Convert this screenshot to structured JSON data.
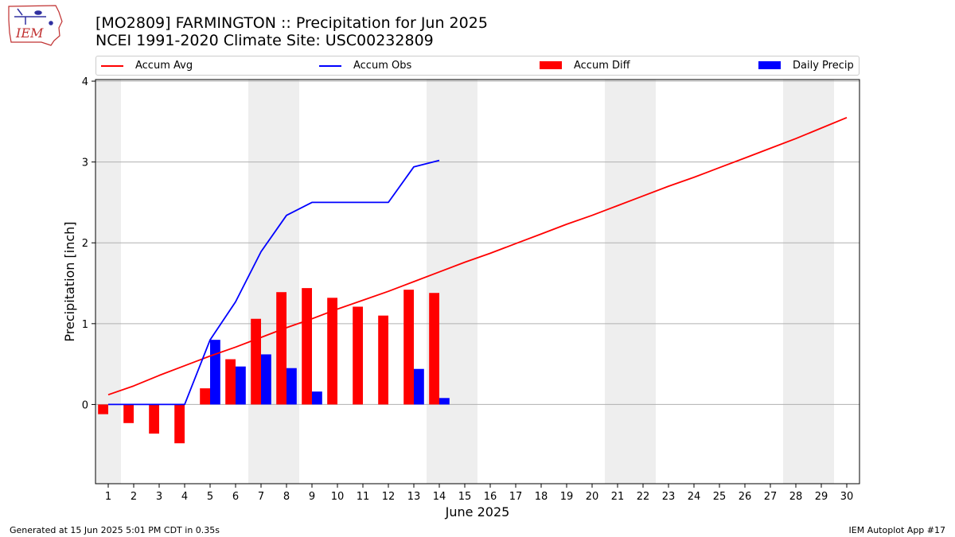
{
  "header": {
    "title_line1": "[MO2809] FARMINGTON :: Precipitation for Jun 2025",
    "title_line2": "NCEI 1991-2020 Climate Site: USC00232809",
    "logo_text": "IEM"
  },
  "footer": {
    "generated": "Generated at 15 Jun 2025 5:01 PM CDT in 0.35s",
    "app": "IEM Autoplot App #17"
  },
  "colors": {
    "accum_avg": "#ff0000",
    "accum_obs": "#0000ff",
    "accum_diff": "#ff0000",
    "daily_precip": "#0000ff",
    "weekend_band": "#eeeeee",
    "grid": "#b0b0b0"
  },
  "chart_data": {
    "type": "bar",
    "xlabel": "June 2025",
    "ylabel": "Precipitation [inch]",
    "x": [
      1,
      2,
      3,
      4,
      5,
      6,
      7,
      8,
      9,
      10,
      11,
      12,
      13,
      14,
      15,
      16,
      17,
      18,
      19,
      20,
      21,
      22,
      23,
      24,
      25,
      26,
      27,
      28,
      29,
      30
    ],
    "xticks": [
      "1",
      "2",
      "3",
      "4",
      "5",
      "6",
      "7",
      "8",
      "9",
      "10",
      "11",
      "12",
      "13",
      "14",
      "15",
      "16",
      "17",
      "18",
      "19",
      "20",
      "21",
      "22",
      "23",
      "24",
      "25",
      "26",
      "27",
      "28",
      "29",
      "30"
    ],
    "xlim": [
      0.5,
      30.5
    ],
    "ylim": [
      -0.98,
      4.02
    ],
    "yticks": [
      0,
      1,
      2,
      3,
      4
    ],
    "ytick_labels": [
      "0",
      "1",
      "2",
      "3",
      "4"
    ],
    "grid": "horizontal",
    "legend": "top, above plot",
    "weekend_days": [
      1,
      7,
      8,
      14,
      15,
      21,
      22,
      28,
      29
    ],
    "series": [
      {
        "name": "Accum Avg",
        "kind": "line",
        "x": [
          1,
          2,
          3,
          4,
          5,
          6,
          7,
          8,
          9,
          10,
          11,
          12,
          13,
          14,
          15,
          16,
          17,
          18,
          19,
          20,
          21,
          22,
          23,
          24,
          25,
          26,
          27,
          28,
          29,
          30
        ],
        "values": [
          0.12,
          0.23,
          0.36,
          0.48,
          0.6,
          0.71,
          0.83,
          0.95,
          1.06,
          1.18,
          1.29,
          1.4,
          1.52,
          1.64,
          1.76,
          1.87,
          1.99,
          2.11,
          2.23,
          2.34,
          2.46,
          2.58,
          2.7,
          2.81,
          2.93,
          3.05,
          3.17,
          3.29,
          3.42,
          3.55
        ]
      },
      {
        "name": "Accum Obs",
        "kind": "line",
        "x": [
          1,
          2,
          3,
          4,
          5,
          6,
          7,
          8,
          9,
          10,
          11,
          12,
          13,
          14
        ],
        "values": [
          0,
          0,
          0,
          0,
          0.8,
          1.27,
          1.89,
          2.34,
          2.5,
          2.5,
          2.5,
          2.5,
          2.94,
          3.02
        ]
      },
      {
        "name": "Accum Diff",
        "kind": "bar",
        "x": [
          1,
          2,
          3,
          4,
          5,
          6,
          7,
          8,
          9,
          10,
          11,
          12,
          13,
          14
        ],
        "values": [
          -0.12,
          -0.23,
          -0.36,
          -0.48,
          0.2,
          0.56,
          1.06,
          1.39,
          1.44,
          1.32,
          1.21,
          1.1,
          1.42,
          1.38
        ]
      },
      {
        "name": "Daily Precip",
        "kind": "bar",
        "x": [
          1,
          2,
          3,
          4,
          5,
          6,
          7,
          8,
          9,
          10,
          11,
          12,
          13,
          14
        ],
        "values": [
          0,
          0,
          0,
          0,
          0.8,
          0.47,
          0.62,
          0.45,
          0.16,
          0,
          0,
          0,
          0.44,
          0.08
        ]
      }
    ]
  }
}
